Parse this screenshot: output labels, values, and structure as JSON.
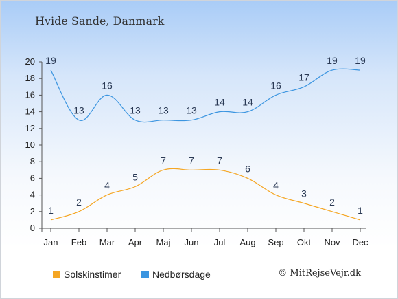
{
  "title": "Hvide Sande, Danmark",
  "credit": "© MitRejseVejr.dk",
  "chart_data": {
    "type": "line",
    "categories": [
      "Jan",
      "Feb",
      "Mar",
      "Apr",
      "Maj",
      "Jun",
      "Jul",
      "Aug",
      "Sep",
      "Okt",
      "Nov",
      "Dec"
    ],
    "ylim": [
      0,
      20
    ],
    "yticks": [
      0,
      2,
      4,
      6,
      8,
      10,
      12,
      14,
      16,
      18,
      20
    ],
    "grid": false,
    "legend_position": "bottom",
    "series": [
      {
        "name": "Solskinstimer",
        "color": "#f5a623",
        "values": [
          1,
          2,
          4,
          5,
          7,
          7,
          7,
          6,
          4,
          3,
          2,
          1
        ]
      },
      {
        "name": "Nedbørsdage",
        "color": "#3b95e0",
        "values": [
          19,
          13,
          16,
          13,
          13,
          13,
          14,
          14,
          16,
          17,
          19,
          19
        ]
      }
    ]
  }
}
